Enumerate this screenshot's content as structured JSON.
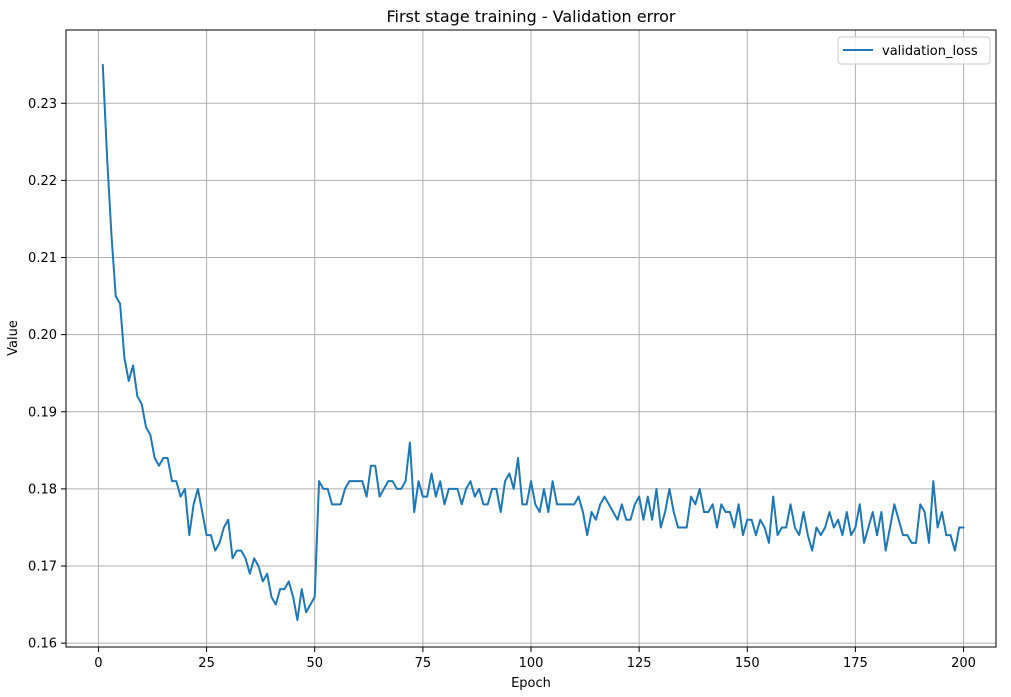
{
  "chart_data": {
    "type": "line",
    "title": "First stage training - Validation error",
    "xlabel": "Epoch",
    "ylabel": "Value",
    "xlim": [
      -7.5,
      207.5
    ],
    "ylim": [
      0.1595,
      0.2395
    ],
    "xticks": [
      0,
      25,
      50,
      75,
      100,
      125,
      150,
      175,
      200
    ],
    "yticks": [
      0.16,
      0.17,
      0.18,
      0.19,
      0.2,
      0.21,
      0.22,
      0.23
    ],
    "ytick_labels": [
      "0.16",
      "0.17",
      "0.18",
      "0.19",
      "0.20",
      "0.21",
      "0.22",
      "0.23"
    ],
    "grid": true,
    "legend": {
      "position": "top-right",
      "entries": [
        "validation_loss"
      ]
    },
    "colors": {
      "series": "#1f77b4",
      "grid": "#b0b0b0"
    },
    "series": [
      {
        "name": "validation_loss",
        "x_start": 1,
        "values": [
          0.235,
          0.223,
          0.213,
          0.205,
          0.204,
          0.197,
          0.194,
          0.196,
          0.192,
          0.191,
          0.188,
          0.187,
          0.184,
          0.183,
          0.184,
          0.184,
          0.181,
          0.181,
          0.179,
          0.18,
          0.174,
          0.178,
          0.18,
          0.177,
          0.174,
          0.174,
          0.172,
          0.173,
          0.175,
          0.176,
          0.171,
          0.172,
          0.172,
          0.171,
          0.169,
          0.171,
          0.17,
          0.168,
          0.169,
          0.166,
          0.165,
          0.167,
          0.167,
          0.168,
          0.166,
          0.163,
          0.167,
          0.164,
          0.165,
          0.166,
          0.181,
          0.18,
          0.18,
          0.178,
          0.178,
          0.178,
          0.18,
          0.181,
          0.181,
          0.181,
          0.181,
          0.179,
          0.183,
          0.183,
          0.179,
          0.18,
          0.181,
          0.181,
          0.18,
          0.18,
          0.181,
          0.186,
          0.177,
          0.181,
          0.179,
          0.179,
          0.182,
          0.179,
          0.181,
          0.178,
          0.18,
          0.18,
          0.18,
          0.178,
          0.18,
          0.181,
          0.179,
          0.18,
          0.178,
          0.178,
          0.18,
          0.18,
          0.177,
          0.181,
          0.182,
          0.18,
          0.184,
          0.178,
          0.178,
          0.181,
          0.178,
          0.177,
          0.18,
          0.177,
          0.181,
          0.178,
          0.178,
          0.178,
          0.178,
          0.178,
          0.179,
          0.177,
          0.174,
          0.177,
          0.176,
          0.178,
          0.179,
          0.178,
          0.177,
          0.176,
          0.178,
          0.176,
          0.176,
          0.178,
          0.179,
          0.176,
          0.179,
          0.176,
          0.18,
          0.175,
          0.177,
          0.18,
          0.177,
          0.175,
          0.175,
          0.175,
          0.179,
          0.178,
          0.18,
          0.177,
          0.177,
          0.178,
          0.175,
          0.178,
          0.177,
          0.177,
          0.175,
          0.178,
          0.174,
          0.176,
          0.176,
          0.174,
          0.176,
          0.175,
          0.173,
          0.179,
          0.174,
          0.175,
          0.175,
          0.178,
          0.175,
          0.174,
          0.177,
          0.174,
          0.172,
          0.175,
          0.174,
          0.175,
          0.177,
          0.175,
          0.176,
          0.174,
          0.177,
          0.174,
          0.175,
          0.178,
          0.173,
          0.175,
          0.177,
          0.174,
          0.177,
          0.172,
          0.175,
          0.178,
          0.176,
          0.174,
          0.174,
          0.173,
          0.173,
          0.178,
          0.177,
          0.173,
          0.181,
          0.175,
          0.177,
          0.174,
          0.174,
          0.172,
          0.175,
          0.175
        ]
      }
    ]
  }
}
